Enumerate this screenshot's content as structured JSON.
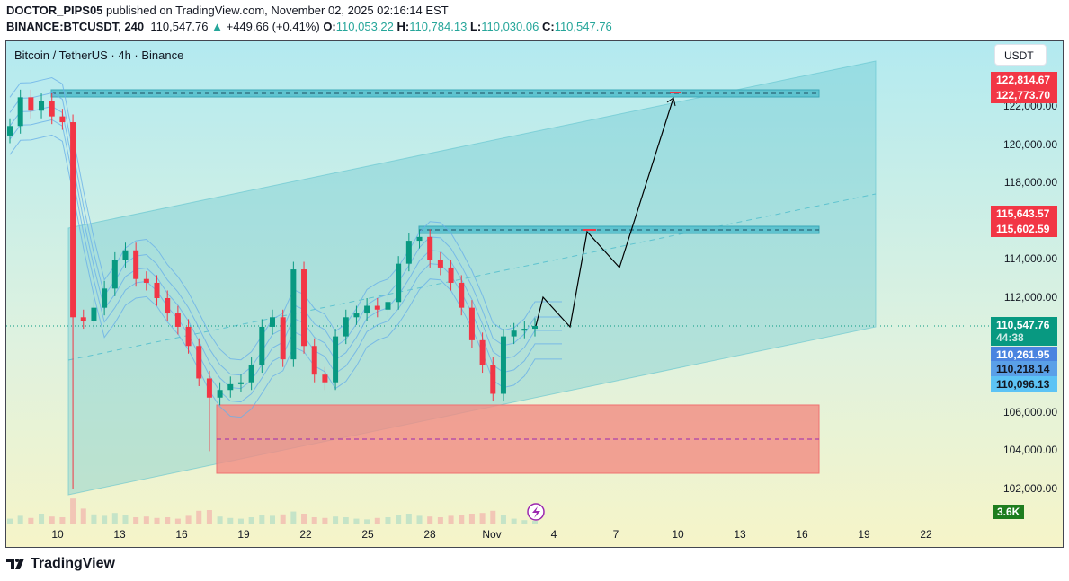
{
  "header": {
    "author": "DOCTOR_PIPS05",
    "published": "published on TradingView.com, November 02, 2025 02:16:14 EST",
    "symbol": "BINANCE:BTCUSDT, 240",
    "last": "110,547.76",
    "change": "+449.66 (+0.41%)",
    "o_label": "O:",
    "o": "110,053.22",
    "h_label": "H:",
    "h": "110,784.13",
    "l_label": "L:",
    "l": "110,030.06",
    "c_label": "C:",
    "c": "110,547.76"
  },
  "chart_title": "Bitcoin / TetherUS · 4h · Binance",
  "currency": "USDT",
  "price_axis": [
    "122,000.00",
    "120,000.00",
    "118,000.00",
    "114,000.00",
    "112,000.00",
    "106,000.00",
    "104,000.00",
    "102,000.00"
  ],
  "price_tags": [
    {
      "text": "122,814.67",
      "color": "#f23645"
    },
    {
      "text": "122,773.70",
      "color": "#f23645"
    },
    {
      "text": "115,643.57",
      "color": "#f23645"
    },
    {
      "text": "115,602.59",
      "color": "#f23645"
    },
    {
      "text": "110,547.76",
      "sub": "44:38",
      "color": "#089981"
    },
    {
      "text": "110,261.95",
      "color": "#4a84e0"
    },
    {
      "text": "110,218.14",
      "color": "#5aa0e8",
      "dark": true
    },
    {
      "text": "110,096.13",
      "color": "#5cc3f5",
      "dark": true
    }
  ],
  "time_axis": [
    "10",
    "13",
    "16",
    "19",
    "22",
    "25",
    "28",
    "Nov",
    "4",
    "7",
    "10",
    "13",
    "16",
    "19",
    "22"
  ],
  "volume_label": "3.6K",
  "colors": {
    "up": "#089981",
    "down": "#f23645",
    "channel": "#5fc3cf",
    "zone": "#f28b82"
  },
  "chart_data": {
    "type": "candlestick",
    "interval": "4h",
    "closes": [
      121000,
      122500,
      121800,
      122300,
      121500,
      121200,
      111000,
      110800,
      111500,
      112500,
      114000,
      114500,
      113000,
      112800,
      112000,
      111200,
      110500,
      109500,
      107800,
      106800,
      107200,
      107500,
      107600,
      108500,
      110500,
      111000,
      108800,
      113500,
      109500,
      108000,
      107600,
      110000,
      111000,
      111200,
      111600,
      111400,
      111800,
      113800,
      115000,
      115200,
      114000,
      113600,
      112800,
      111500,
      109800,
      108500,
      107000,
      110000,
      110300,
      110400,
      110547.76
    ],
    "volume_k": [
      0.8,
      1.2,
      0.9,
      1.5,
      1.1,
      1.0,
      3.6,
      2.2,
      1.4,
      1.2,
      1.6,
      1.3,
      1.0,
      1.1,
      0.9,
      1.0,
      0.8,
      1.2,
      1.9,
      2.0,
      1.1,
      0.9,
      0.8,
      1.0,
      1.3,
      1.2,
      1.4,
      1.8,
      1.5,
      1.0,
      0.9,
      1.1,
      1.0,
      0.8,
      0.7,
      0.9,
      1.0,
      1.3,
      1.5,
      1.2,
      1.1,
      1.0,
      1.2,
      1.3,
      1.5,
      1.6,
      1.9,
      1.3,
      0.8,
      0.6,
      0.5
    ]
  }
}
